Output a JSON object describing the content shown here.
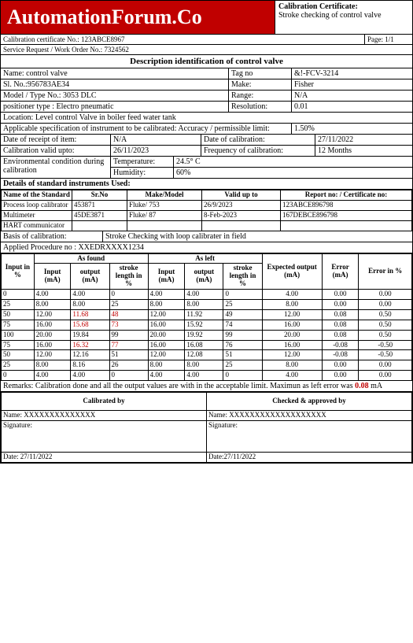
{
  "header": {
    "logo_text": "AutomationForum.Co",
    "cert_title": "Calibration Certificate:",
    "cert_sub": "Stroke checking of control valve",
    "cert_no_label": "Calibration certificate No.:",
    "cert_no": "123ABCE8967",
    "page_label": "Page: 1/1",
    "service_label": "Service Request / Work Order No.:",
    "service_no": "7324562"
  },
  "desc": {
    "title": "Description identification of control valve",
    "name_label": "Name: control valve",
    "tag_label": "Tag no",
    "tag_val": "&!-FCV-3214",
    "sl_label": "Sl. No.:956783AE34",
    "make_label": "Make:",
    "make_val": "Fisher",
    "model_label": "Model / Type No.:  3053 DLC",
    "range_label": "Range:",
    "range_val": "N/A",
    "positioner_label": "positioner type : Electro pneumatic",
    "res_label": "Resolution:",
    "res_val": "0.01",
    "location": "Location: Level control Valve in boiler feed water tank",
    "spec_label": "Applicable specification of instrument to be calibrated: Accuracy / permissible limit:",
    "spec_val": "1.50%",
    "receipt_label": "Date of receipt of item:",
    "receipt_val": "N/A",
    "cal_date_label": "Date of calibration:",
    "cal_date_val": "27/11/2022",
    "valid_label": "Calibration valid upto:",
    "valid_val": "26/11/2023",
    "freq_label": "Frequency of calibration:",
    "freq_val": "12 Months",
    "env_label": "Environmental condition during calibration",
    "temp_label": "Temperature:",
    "temp_val": "24.5° C",
    "hum_label": "Humidity:",
    "hum_val": "60%"
  },
  "std": {
    "title": "Details of standard instruments Used:",
    "h1": "Name of the Standard",
    "h2": "Sr.No",
    "h3": "Make/Model",
    "h4": "Valid up to",
    "h5": "Report no: / Certificate no:",
    "rows": [
      {
        "c1": "Process loop calibrator",
        "c2": "453871",
        "c3": "Fluke/ 753",
        "c4": "26/9/2023",
        "c5": "123ABCE896798"
      },
      {
        "c1": "Multimeter",
        "c2": "45DE3871",
        "c3": "Fluke/ 87",
        "c4": "8-Feb-2023",
        "c5": "167DEBCE896798"
      },
      {
        "c1": "HART communicator",
        "c2": "",
        "c3": "",
        "c4": "",
        "c5": ""
      }
    ],
    "basis_label": "Basis of calibration:",
    "basis_val": "Stroke Checking with loop calibrater in field",
    "proc_label": "Applied Procedure no :  XXEDRXXXX1234"
  },
  "data": {
    "h_input": "Input in %",
    "h_found": "As found",
    "h_left": "As  left",
    "h_in_ma": "Input (mA)",
    "h_out_ma": "output (mA)",
    "h_stroke": "stroke length in %",
    "h_expected": "Expected output (mA)",
    "h_error": "Error (mA)",
    "h_error_pct": "Error in %",
    "rows": [
      {
        "p": "0",
        "fi": "4.00",
        "fo": "4.00",
        "fs": "0",
        "li": "4.00",
        "lo": "4.00",
        "ls": "0",
        "exp": "4.00",
        "err": "0.00",
        "ep": "0.00",
        "red": false
      },
      {
        "p": "25",
        "fi": "8.00",
        "fo": "8.00",
        "fs": "25",
        "li": "8.00",
        "lo": "8.00",
        "ls": "25",
        "exp": "8.00",
        "err": "0.00",
        "ep": "0.00",
        "red": false
      },
      {
        "p": "50",
        "fi": "12.00",
        "fo": "11.68",
        "fs": "48",
        "li": "12.00",
        "lo": "11.92",
        "ls": "49",
        "exp": "12.00",
        "err": "0.08",
        "ep": "0.50",
        "red": true
      },
      {
        "p": "75",
        "fi": "16.00",
        "fo": "15.68",
        "fs": "73",
        "li": "16.00",
        "lo": "15.92",
        "ls": "74",
        "exp": "16.00",
        "err": "0.08",
        "ep": "0.50",
        "red": true
      },
      {
        "p": "100",
        "fi": "20.00",
        "fo": "19.84",
        "fs": "99",
        "li": "20.00",
        "lo": "19.92",
        "ls": "99",
        "exp": "20.00",
        "err": "0.08",
        "ep": "0.50",
        "red": false
      },
      {
        "p": "75",
        "fi": "16.00",
        "fo": "16.32",
        "fs": "77",
        "li": "16.00",
        "lo": "16.08",
        "ls": "76",
        "exp": "16.00",
        "err": "-0.08",
        "ep": "-0.50",
        "red": true
      },
      {
        "p": "50",
        "fi": "12.00",
        "fo": "12.16",
        "fs": "51",
        "li": "12.00",
        "lo": "12.08",
        "ls": "51",
        "exp": "12.00",
        "err": "-0.08",
        "ep": "-0.50",
        "red": false
      },
      {
        "p": "25",
        "fi": "8.00",
        "fo": "8.16",
        "fs": "26",
        "li": "8.00",
        "lo": "8.00",
        "ls": "25",
        "exp": "8.00",
        "err": "0.00",
        "ep": "0.00",
        "red": false
      },
      {
        "p": "0",
        "fi": "4.00",
        "fo": "4.00",
        "fs": "0",
        "li": "4.00",
        "lo": "4.00",
        "ls": "0",
        "exp": "4.00",
        "err": "0.00",
        "ep": "0.00",
        "red": false
      }
    ],
    "remarks_pre": "Remarks: Calibration done and all the output values are with in the acceptable limit. Maximun as left error was ",
    "remarks_val": "0.08",
    "remarks_post": " mA"
  },
  "sign": {
    "cal_by": "Calibrated by",
    "chk_by": "Checked & approved by",
    "name_label": "Name:",
    "name1": "XXXXXXXXXXXXXX",
    "name2": "XXXXXXXXXXXXXXXXXXX",
    "sig_label": "Signature:",
    "date_label1": "Date: 27/11/2022",
    "date_label2": "Date:27/11/2022"
  }
}
